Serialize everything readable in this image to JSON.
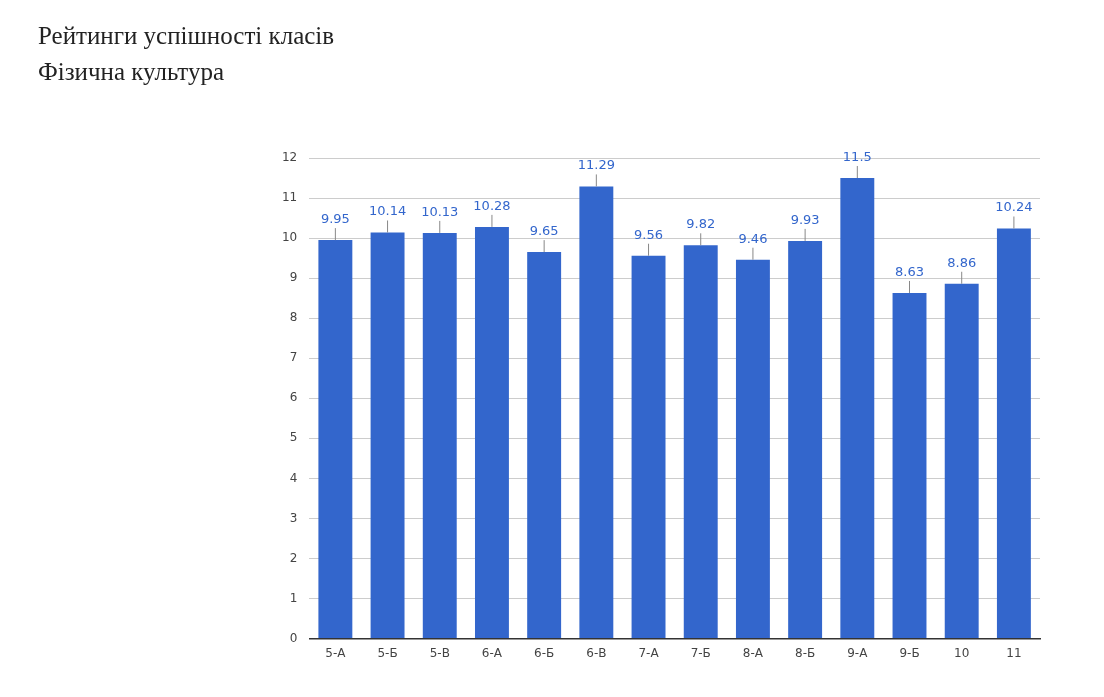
{
  "chart_data": {
    "type": "bar",
    "title": "Рейтинги успішності класів",
    "subtitle": "Фізична культура",
    "categories": [
      "5-А",
      "5-Б",
      "5-В",
      "6-А",
      "6-Б",
      "6-В",
      "7-А",
      "7-Б",
      "8-А",
      "8-Б",
      "9-А",
      "9-Б",
      "10",
      "11"
    ],
    "values": [
      9.95,
      10.14,
      10.13,
      10.28,
      9.65,
      11.29,
      9.56,
      9.82,
      9.46,
      9.93,
      11.5,
      8.63,
      8.86,
      10.24
    ],
    "color": "#3366cc",
    "ylim": [
      0,
      12
    ],
    "yticks": [
      0,
      1,
      2,
      3,
      4,
      5,
      6,
      7,
      8,
      9,
      10,
      11,
      12
    ],
    "grid": "y",
    "data_labels": true
  }
}
